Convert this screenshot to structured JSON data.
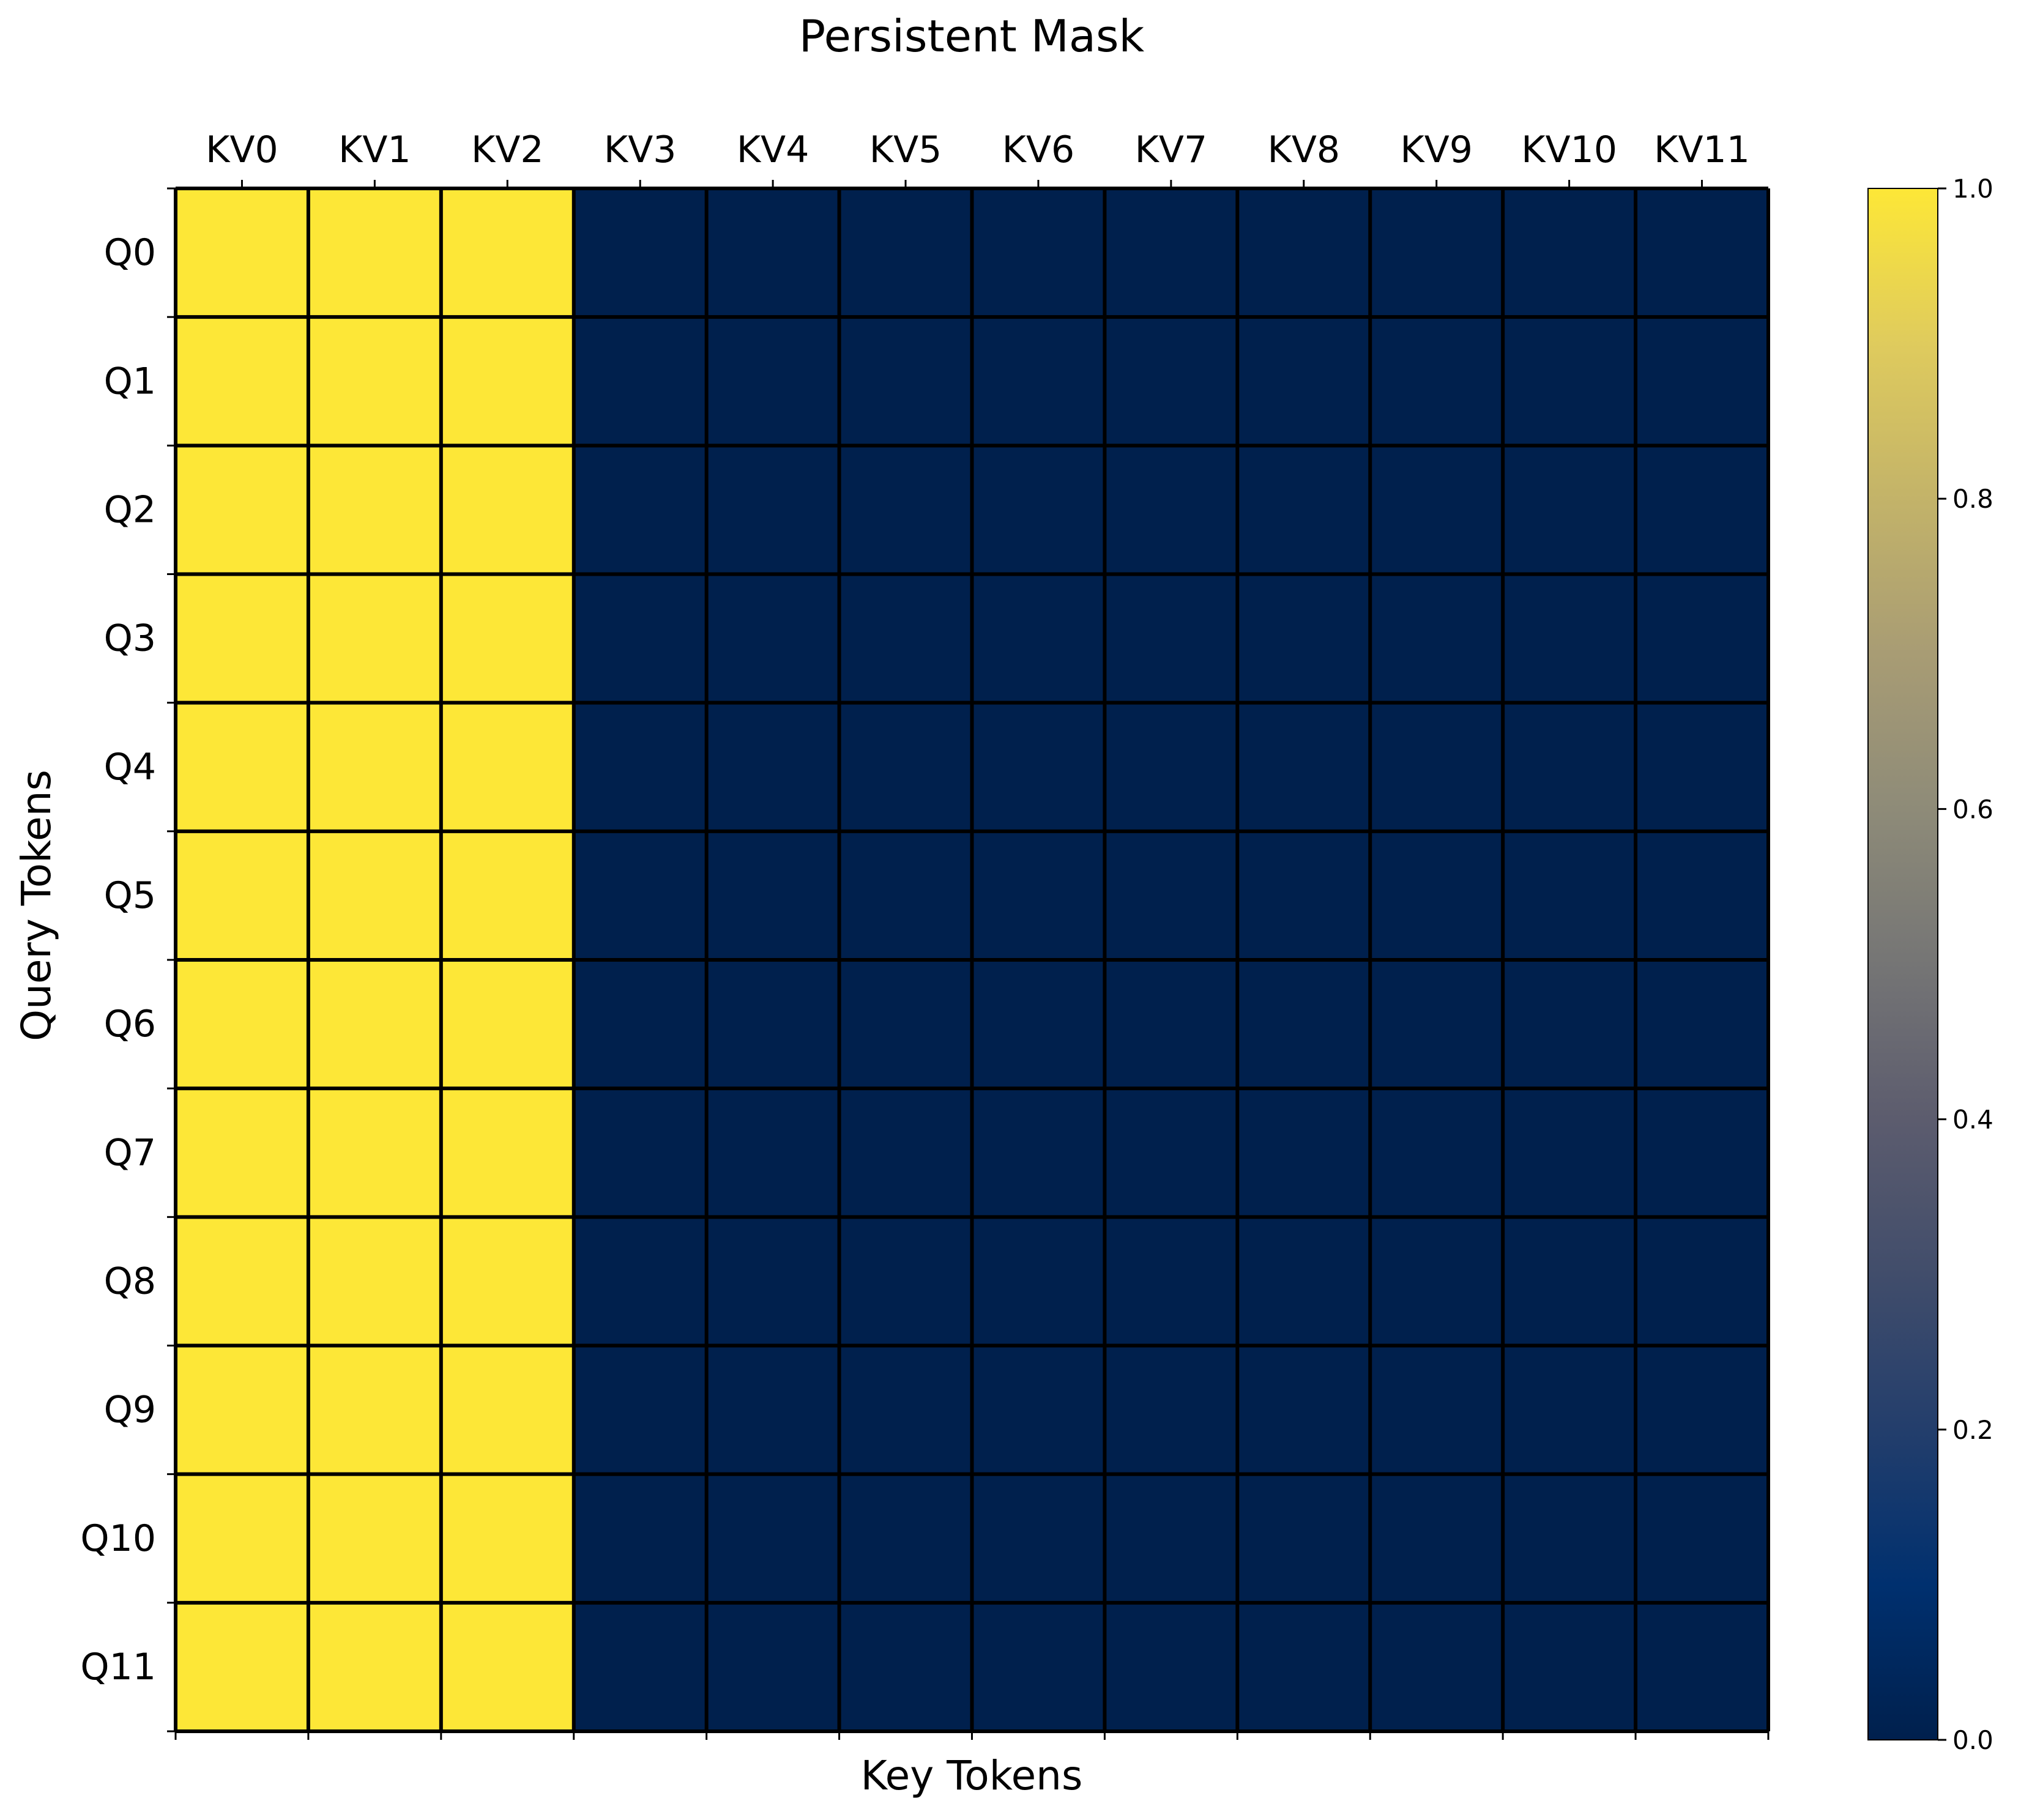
{
  "chart_data": {
    "type": "heatmap",
    "title": "Persistent Mask",
    "xlabel": "Key Tokens",
    "ylabel": "Query Tokens",
    "x_categories": [
      "KV0",
      "KV1",
      "KV2",
      "KV3",
      "KV4",
      "KV5",
      "KV6",
      "KV7",
      "KV8",
      "KV9",
      "KV10",
      "KV11"
    ],
    "y_categories": [
      "Q0",
      "Q1",
      "Q2",
      "Q3",
      "Q4",
      "Q5",
      "Q6",
      "Q7",
      "Q8",
      "Q9",
      "Q10",
      "Q11"
    ],
    "x_axis_position": "top",
    "grid": true,
    "values": [
      [
        1,
        1,
        1,
        0,
        0,
        0,
        0,
        0,
        0,
        0,
        0,
        0
      ],
      [
        1,
        1,
        1,
        0,
        0,
        0,
        0,
        0,
        0,
        0,
        0,
        0
      ],
      [
        1,
        1,
        1,
        0,
        0,
        0,
        0,
        0,
        0,
        0,
        0,
        0
      ],
      [
        1,
        1,
        1,
        0,
        0,
        0,
        0,
        0,
        0,
        0,
        0,
        0
      ],
      [
        1,
        1,
        1,
        0,
        0,
        0,
        0,
        0,
        0,
        0,
        0,
        0
      ],
      [
        1,
        1,
        1,
        0,
        0,
        0,
        0,
        0,
        0,
        0,
        0,
        0
      ],
      [
        1,
        1,
        1,
        0,
        0,
        0,
        0,
        0,
        0,
        0,
        0,
        0
      ],
      [
        1,
        1,
        1,
        0,
        0,
        0,
        0,
        0,
        0,
        0,
        0,
        0
      ],
      [
        1,
        1,
        1,
        0,
        0,
        0,
        0,
        0,
        0,
        0,
        0,
        0
      ],
      [
        1,
        1,
        1,
        0,
        0,
        0,
        0,
        0,
        0,
        0,
        0,
        0
      ],
      [
        1,
        1,
        1,
        0,
        0,
        0,
        0,
        0,
        0,
        0,
        0,
        0
      ],
      [
        1,
        1,
        1,
        0,
        0,
        0,
        0,
        0,
        0,
        0,
        0,
        0
      ]
    ],
    "colorbar": {
      "colormap": "cividis",
      "range": [
        0.0,
        1.0
      ],
      "ticks": [
        "0.0",
        "0.2",
        "0.4",
        "0.6",
        "0.8",
        "1.0"
      ],
      "position": "right"
    },
    "colors": {
      "low": "#00204d",
      "high": "#fde737",
      "gridline": "#000000"
    }
  }
}
